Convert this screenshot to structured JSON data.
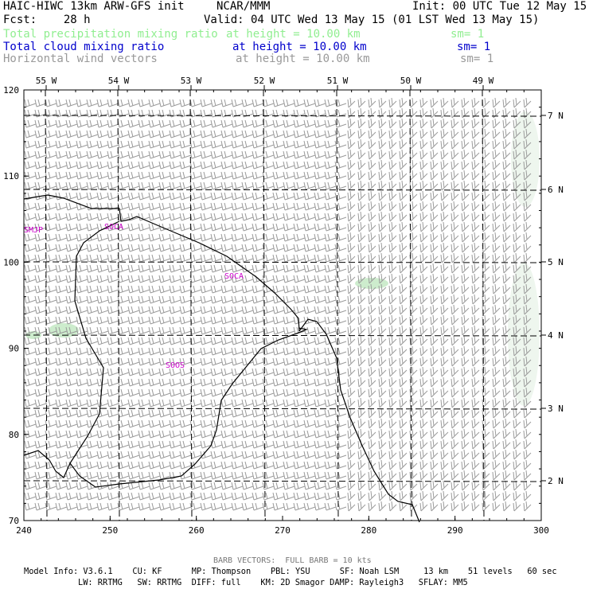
{
  "header": {
    "title": "HAIC-HIWC 13km ARW-GFS init",
    "org": "NCAR/MMM",
    "init": "Init: 00 UTC Tue 12 May 15",
    "fcst": "Fcst:    28 h",
    "valid": "Valid: 04 UTC Wed 13 May 15 (01 LST Wed 13 May 15)"
  },
  "fields": [
    {
      "name": "Total precipitation mixing ratio",
      "level": "at height = 10.00 km",
      "smooth": "sm= 1",
      "color": "#90ee90"
    },
    {
      "name": "Total cloud mixing ratio",
      "level": "at height = 10.00 km",
      "smooth": "sm= 1",
      "color": "#0000cc"
    },
    {
      "name": "Horizontal wind vectors",
      "level": "at height = 10.00 km",
      "smooth": "sm= 1",
      "color": "#999999"
    }
  ],
  "axes": {
    "x_ticks": [
      "240",
      "250",
      "260",
      "270",
      "280",
      "290",
      "300"
    ],
    "y_ticks": [
      "70",
      "80",
      "90",
      "100",
      "110",
      "120"
    ],
    "lon_labels": [
      "55 W",
      "54 W",
      "53 W",
      "52 W",
      "51 W",
      "50 W",
      "49 W"
    ],
    "lat_labels": [
      "7 N",
      "6 N",
      "5 N",
      "4 N",
      "3 N",
      "2 N"
    ]
  },
  "stations": [
    "SMJP",
    "SOCA",
    "SOCA",
    "SOOS"
  ],
  "footer": {
    "barb_note": "BARB VECTORS:  FULL BARB = 10 kts",
    "line1": "Model Info: V3.6.1    CU: KF      MP: Thompson    PBL: YSU      SF: Noah LSM     13 km    51 levels   60 sec",
    "line2": "LW: RRTMG   SW: RRTMG  DIFF: full    KM: 2D Smagor DAMP: Rayleigh3   SFLAY: MM5"
  },
  "colors": {
    "precip": "#90ee90",
    "cloud": "#0000cc",
    "wind": "#999999",
    "station": "#cc00cc",
    "coast": "#000000"
  }
}
